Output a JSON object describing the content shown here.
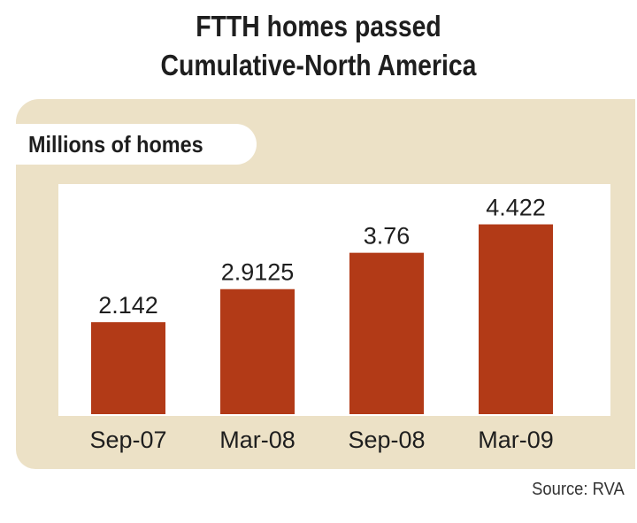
{
  "chart_data": {
    "type": "bar",
    "title": "FTTH homes passed",
    "subtitle": "Cumulative-North America",
    "ylabel": "Millions of homes",
    "categories": [
      "Sep-07",
      "Mar-08",
      "Sep-08",
      "Mar-09"
    ],
    "values": [
      2.142,
      2.9125,
      3.76,
      4.422
    ],
    "value_labels": [
      "2.142",
      "2.9125",
      "3.76",
      "4.422"
    ],
    "ylim": [
      0,
      5
    ],
    "grid": false,
    "bar_color": "#b23a17"
  },
  "source": "Source: RVA",
  "colors": {
    "panel": "#ece1c6",
    "bar": "#b23a17",
    "text": "#1e1e1e"
  }
}
